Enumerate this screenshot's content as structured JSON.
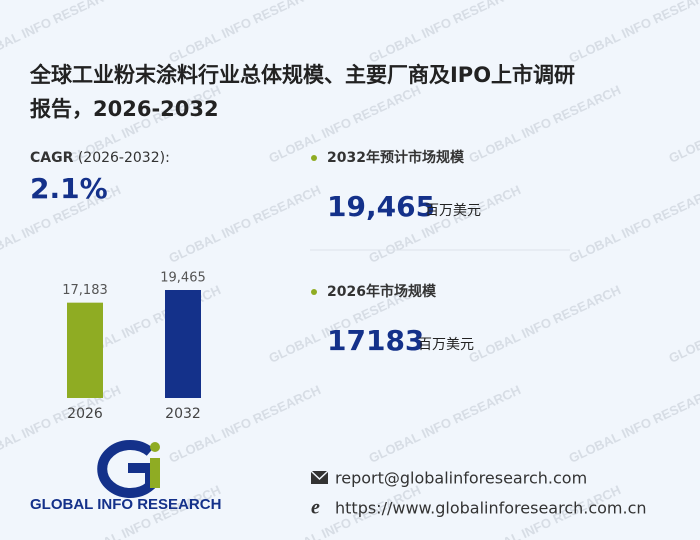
{
  "watermark": "GLOBAL INFO RESEARCH",
  "title": [
    "全球工业粉末涂料行业总体规模、主要厂商及IPO上市调研",
    "报告，2026-2032"
  ],
  "cagr": {
    "label": "CAGR",
    "period": "(2026-2032):",
    "value": "2.1%"
  },
  "stats": [
    {
      "label": "2032年预计市场规模",
      "value": "19,465",
      "unit": "百万美元"
    },
    {
      "label": "2026年市场规模",
      "value": "17183",
      "unit": "百万美元"
    }
  ],
  "chart_data": {
    "type": "bar",
    "categories": [
      "2026",
      "2032"
    ],
    "values": [
      17183,
      19465
    ],
    "value_labels": [
      "17,183",
      "19,465"
    ],
    "colors": [
      "#8fac23",
      "#14318a"
    ]
  },
  "logo": {
    "text": "GLOBAL INFO RESEARCH"
  },
  "contact": {
    "email": "report@globalinforesearch.com",
    "website": "https://www.globalinforesearch.com.cn"
  }
}
